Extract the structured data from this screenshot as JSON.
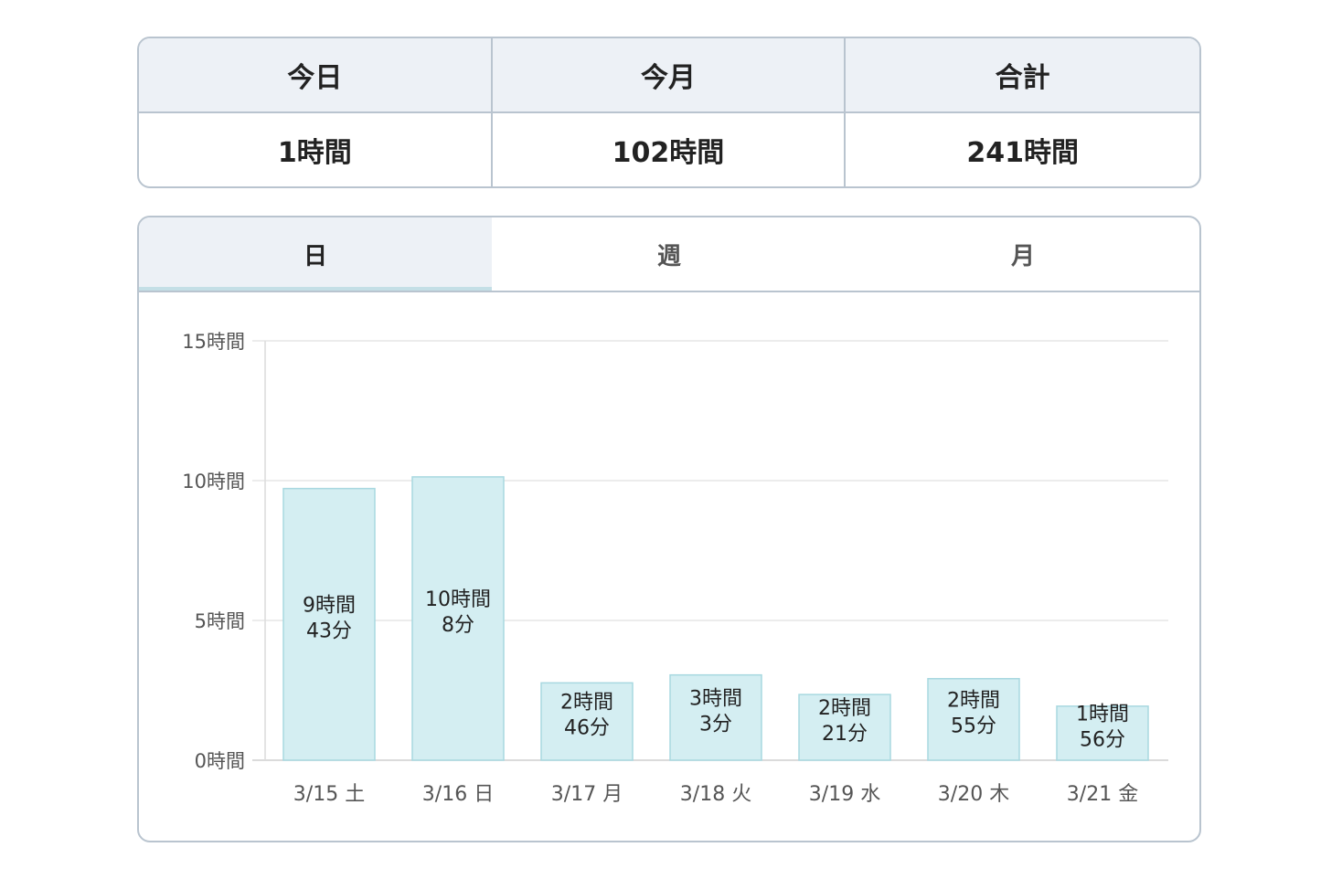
{
  "summary": {
    "headers": [
      "今日",
      "今月",
      "合計"
    ],
    "values": [
      "1時間",
      "102時間",
      "241時間"
    ]
  },
  "tabs": [
    {
      "label": "日",
      "active": true
    },
    {
      "label": "週",
      "active": false
    },
    {
      "label": "月",
      "active": false
    }
  ],
  "colors": {
    "bar_fill": "#d4eef2",
    "bar_stroke": "#a8d8e0",
    "grid": "#e6e6e6",
    "axis_text": "#555555",
    "bar_text": "#222222"
  },
  "chart_data": {
    "type": "bar",
    "categories": [
      "3/15 土",
      "3/16 日",
      "3/17 月",
      "3/18 火",
      "3/19 水",
      "3/20 木",
      "3/21 金"
    ],
    "values": [
      9.7167,
      10.1333,
      2.7667,
      3.05,
      2.35,
      2.9167,
      1.9333
    ],
    "data_labels": [
      [
        "9時間",
        "43分"
      ],
      [
        "10時間",
        "8分"
      ],
      [
        "2時間",
        "46分"
      ],
      [
        "3時間",
        "3分"
      ],
      [
        "2時間",
        "21分"
      ],
      [
        "2時間",
        "55分"
      ],
      [
        "1時間",
        "56分"
      ]
    ],
    "y_ticks": [
      0,
      5,
      10,
      15
    ],
    "y_tick_labels": [
      "0時間",
      "5時間",
      "10時間",
      "15時間"
    ],
    "ylim": [
      0,
      15
    ],
    "grid": true
  }
}
